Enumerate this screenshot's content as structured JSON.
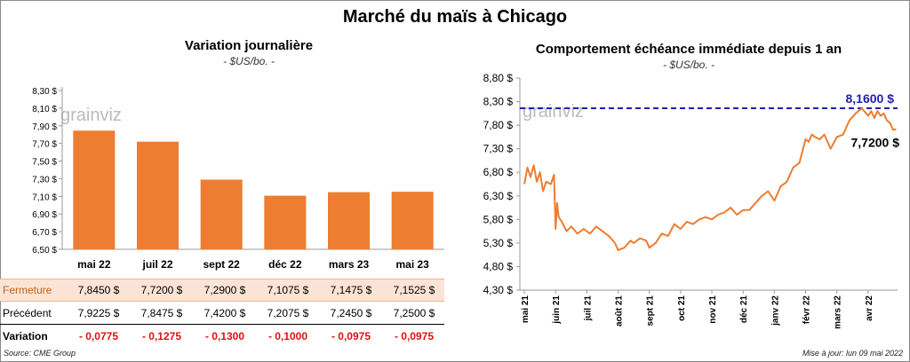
{
  "title": "Marché du maïs à Chicago",
  "left_chart": {
    "title": "Variation  journalière",
    "unit": "- $US/bo. -",
    "watermark": "grainviz"
  },
  "right_chart": {
    "title": "Comportement  échéance immédiate depuis 1 an",
    "unit": "- $US/bo. -",
    "watermark": "grainviz",
    "max_label": "8,1600 $",
    "last_label": "7,7200 $"
  },
  "table": {
    "rows": [
      {
        "label": "Fermeture",
        "values": [
          "7,8450  $",
          "7,7200  $",
          "7,2900  $",
          "7,1075  $",
          "7,1475  $",
          "7,1525  $"
        ]
      },
      {
        "label": "Précédent",
        "values": [
          "7,9225  $",
          "7,8475  $",
          "7,4200  $",
          "7,2075  $",
          "7,2450  $",
          "7,2500  $"
        ]
      },
      {
        "label": "Variation",
        "values": [
          "- 0,0775",
          "- 0,1275",
          "- 0,1300",
          "- 0,1000",
          "- 0,0975",
          "- 0,0975"
        ]
      }
    ]
  },
  "footer": {
    "source": "Source: CME Group",
    "updated": "Mise à jour: lun 09 mai 2022"
  },
  "colors": {
    "bar": "#ed7d31",
    "line": "#ed7d31",
    "max_line": "#1f1fb0",
    "table_highlight": "#fbe4d5",
    "red": "#e01010"
  },
  "chart_data": [
    {
      "type": "bar",
      "categories": [
        "mai 22",
        "juil 22",
        "sept 22",
        "déc 22",
        "mars 23",
        "mai 23"
      ],
      "values": [
        7.845,
        7.72,
        7.29,
        7.1075,
        7.1475,
        7.1525
      ],
      "ylim": [
        6.5,
        8.3
      ],
      "yticks": [
        "6,50 $",
        "6,70 $",
        "6,90 $",
        "7,10 $",
        "7,30 $",
        "7,50 $",
        "7,70 $",
        "7,90 $",
        "8,10 $",
        "8,30 $"
      ],
      "title": "Variation  journalière",
      "grid": false
    },
    {
      "type": "line",
      "x_labels": [
        "mai 21",
        "juin 21",
        "juil 21",
        "août 21",
        "sept 21",
        "oct 21",
        "nov 21",
        "déc 21",
        "janv 22",
        "févr 22",
        "mars 22",
        "avr 22"
      ],
      "ylim": [
        4.3,
        8.8
      ],
      "yticks": [
        "4,30 $",
        "4,80 $",
        "5,30 $",
        "5,80 $",
        "6,30 $",
        "6,80 $",
        "7,30 $",
        "7,80 $",
        "8,30 $",
        "8,80 $"
      ],
      "series": [
        {
          "x": [
            0,
            0.1,
            0.2,
            0.3,
            0.4,
            0.5,
            0.6,
            0.7,
            0.85,
            0.95,
            1.0,
            1.05,
            1.1,
            1.2,
            1.35,
            1.5,
            1.7,
            1.9,
            2.1,
            2.3,
            2.5,
            2.7,
            2.9,
            3.0,
            3.2,
            3.4,
            3.5,
            3.7,
            3.9,
            4.0,
            4.2,
            4.4,
            4.6,
            4.8,
            5.0,
            5.2,
            5.4,
            5.6,
            5.8,
            6.0,
            6.2,
            6.4,
            6.6,
            6.8,
            7.0,
            7.2,
            7.4,
            7.6,
            7.8,
            8.0,
            8.2,
            8.4,
            8.6,
            8.8,
            9.0,
            9.1,
            9.2,
            9.3,
            9.45,
            9.6,
            9.8,
            10.0,
            10.2,
            10.4,
            10.6,
            10.8,
            11.0,
            11.1,
            11.2,
            11.3,
            11.4,
            11.5,
            11.6,
            11.7,
            11.8,
            11.9
          ],
          "y": [
            6.55,
            6.9,
            6.7,
            6.95,
            6.6,
            6.8,
            6.4,
            6.6,
            6.55,
            6.75,
            5.6,
            6.15,
            5.85,
            5.75,
            5.55,
            5.65,
            5.5,
            5.6,
            5.5,
            5.65,
            5.55,
            5.45,
            5.3,
            5.15,
            5.2,
            5.35,
            5.3,
            5.4,
            5.35,
            5.2,
            5.3,
            5.5,
            5.45,
            5.7,
            5.6,
            5.75,
            5.7,
            5.8,
            5.85,
            5.8,
            5.9,
            5.95,
            6.05,
            5.9,
            6.0,
            6.0,
            6.15,
            6.3,
            6.4,
            6.2,
            6.5,
            6.6,
            6.9,
            7.0,
            7.5,
            7.45,
            7.6,
            7.55,
            7.5,
            7.6,
            7.3,
            7.55,
            7.6,
            7.9,
            8.05,
            8.16,
            8.0,
            8.1,
            7.95,
            8.1,
            8.0,
            8.05,
            7.9,
            7.85,
            7.7,
            7.72
          ]
        }
      ],
      "max_value": 8.16,
      "last_value": 7.72
    }
  ]
}
